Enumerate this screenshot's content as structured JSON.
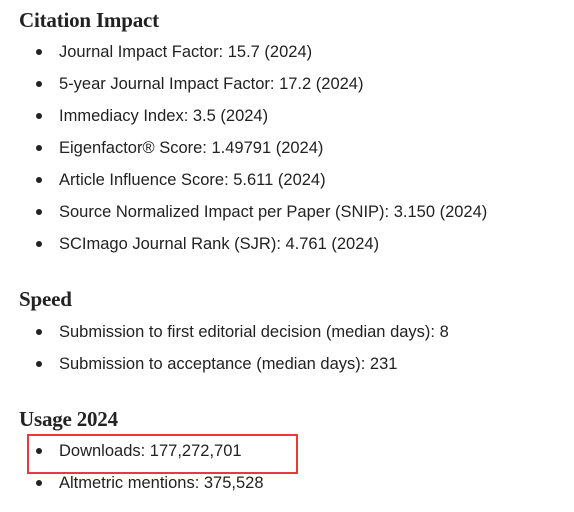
{
  "citation_impact": {
    "title": "Citation Impact",
    "items": [
      "Journal Impact Factor: 15.7 (2024)",
      "5-year Journal Impact Factor: 17.2 (2024)",
      "Immediacy Index: 3.5 (2024)",
      "Eigenfactor® Score: 1.49791 (2024)",
      "Article Influence Score: 5.611 (2024)",
      "Source Normalized Impact per Paper (SNIP): 3.150 (2024)",
      "SCImago Journal Rank (SJR): 4.761 (2024)"
    ]
  },
  "speed": {
    "title": "Speed",
    "items": [
      "Submission to first editorial decision (median days): 8",
      "Submission to acceptance (median days): 231"
    ]
  },
  "usage": {
    "title": "Usage 2024",
    "items": [
      "Downloads: 177,272,701",
      "Altmetric mentions: 375,528"
    ]
  },
  "colors": {
    "text": "#222222",
    "highlight_border": "#e8393e",
    "background": "#ffffff"
  }
}
